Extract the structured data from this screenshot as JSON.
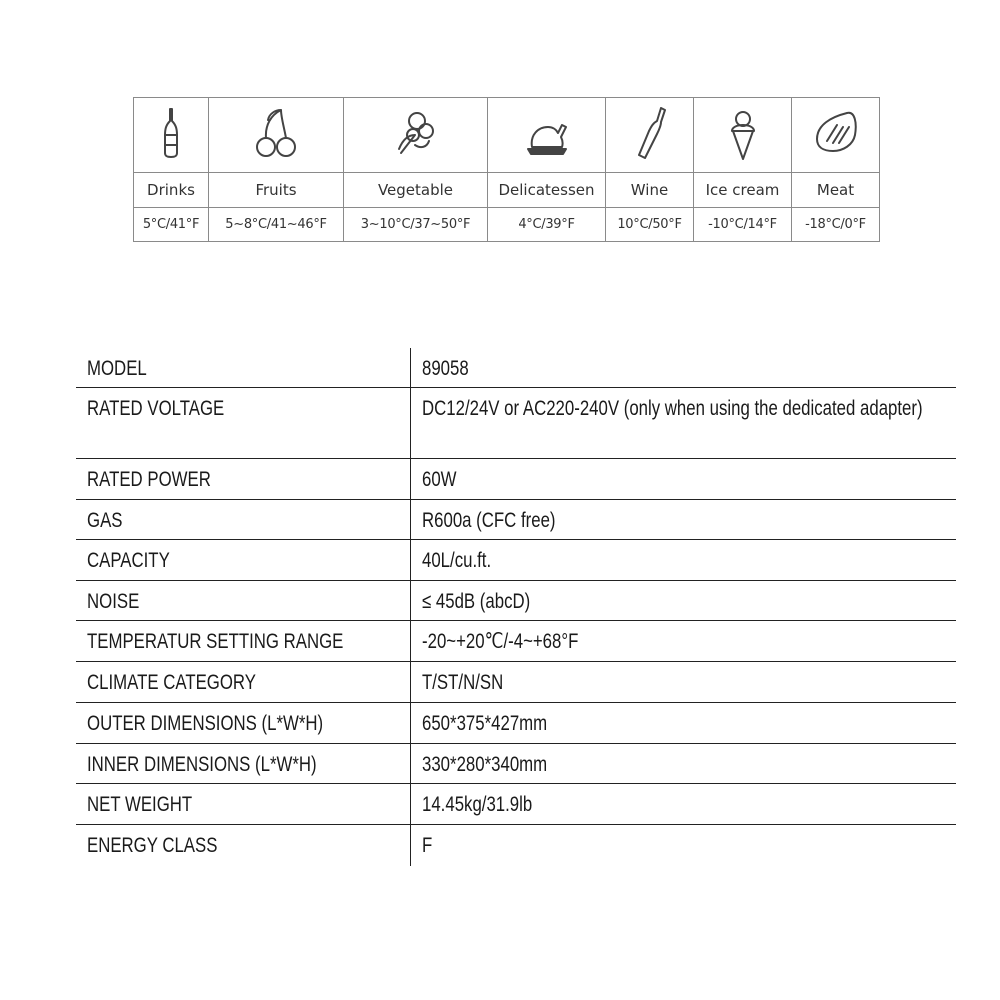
{
  "food_table": {
    "columns": [
      {
        "icon": "drink-bottle-icon",
        "label": "Drinks",
        "temp": "5°C/41°F"
      },
      {
        "icon": "cherries-icon",
        "label": "Fruits",
        "temp": "5~8°C/41~46°F"
      },
      {
        "icon": "vegetable-icon",
        "label": "Vegetable",
        "temp": "3~10°C/37~50°F"
      },
      {
        "icon": "roast-chicken-icon",
        "label": "Delicatessen",
        "temp": "4°C/39°F"
      },
      {
        "icon": "wine-bottle-icon",
        "label": "Wine",
        "temp": "10°C/50°F"
      },
      {
        "icon": "ice-cream-icon",
        "label": "Ice cream",
        "temp": "-10°C/14°F"
      },
      {
        "icon": "steak-icon",
        "label": "Meat",
        "temp": "-18°C/0°F"
      }
    ]
  },
  "specs": [
    {
      "key": "MODEL",
      "value": "89058"
    },
    {
      "key": "RATED VOLTAGE",
      "value": "DC12/24V or AC220-240V (only when using the dedicated adapter)"
    },
    {
      "key": "RATED POWER",
      "value": "60W"
    },
    {
      "key": "GAS",
      "value": "R600a (CFC free)"
    },
    {
      "key": "CAPACITY",
      "value": "40L/cu.ft."
    },
    {
      "key": "NOISE",
      "value": "≤ 45dB (abcD)"
    },
    {
      "key": "TEMPERATUR SETTING RANGE",
      "value": "-20~+20℃/-4~+68°F"
    },
    {
      "key": "CLIMATE CATEGORY",
      "value": "T/ST/N/SN"
    },
    {
      "key": "OUTER DIMENSIONS (L*W*H)",
      "value": "650*375*427mm"
    },
    {
      "key": "INNER DIMENSIONS (L*W*H)",
      "value": "330*280*340mm"
    },
    {
      "key": "NET WEIGHT",
      "value": "14.45kg/31.9lb"
    },
    {
      "key": "ENERGY CLASS",
      "value": "F"
    }
  ]
}
